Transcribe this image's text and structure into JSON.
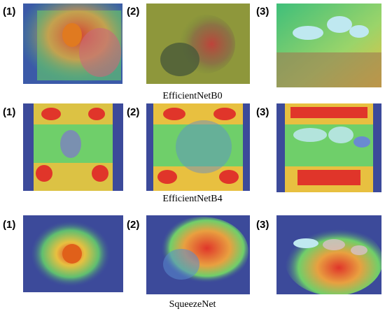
{
  "rows": [
    {
      "caption": "EfficientNetB0",
      "panels": [
        {
          "label": "(1)"
        },
        {
          "label": "(2)"
        },
        {
          "label": "(3)"
        }
      ]
    },
    {
      "caption": "EfficientNetB4",
      "panels": [
        {
          "label": "(1)"
        },
        {
          "label": "(2)"
        },
        {
          "label": "(3)"
        }
      ]
    },
    {
      "caption": "SqueezeNet",
      "panels": [
        {
          "label": "(1)"
        },
        {
          "label": "(2)"
        },
        {
          "label": "(3)"
        }
      ]
    }
  ],
  "colors": {
    "heat_low": "#2a2f9e",
    "heat_mid": "#3fbf7a",
    "heat_warm": "#f2d23a",
    "heat_hot": "#e0352a"
  }
}
